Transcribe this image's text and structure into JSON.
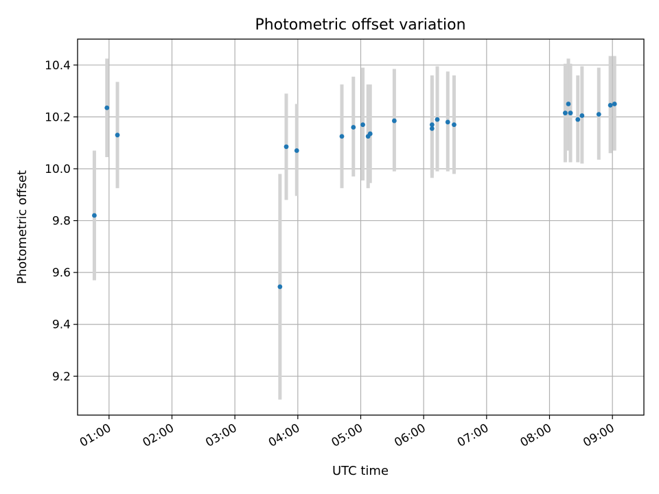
{
  "chart_data": {
    "type": "scatter",
    "title": "Photometric offset variation",
    "xlabel": "UTC time",
    "ylabel": "Photometric offset",
    "xlim": [
      "00:30",
      "09:30"
    ],
    "ylim": [
      9.05,
      10.5
    ],
    "x_ticks": [
      "01:00",
      "02:00",
      "03:00",
      "04:00",
      "05:00",
      "06:00",
      "07:00",
      "08:00",
      "09:00"
    ],
    "y_ticks": [
      "9.2",
      "9.4",
      "9.6",
      "9.8",
      "10.0",
      "10.2",
      "10.4"
    ],
    "grid": true,
    "series": [
      {
        "marker_color": "#1f77b4",
        "errorbar_color": "#d3d3d3",
        "points": [
          {
            "x": "00:46",
            "y": 9.82,
            "low": 9.57,
            "high": 10.07
          },
          {
            "x": "00:58",
            "y": 10.235,
            "low": 10.045,
            "high": 10.425
          },
          {
            "x": "01:08",
            "y": 10.13,
            "low": 9.925,
            "high": 10.335
          },
          {
            "x": "03:43",
            "y": 9.545,
            "low": 9.11,
            "high": 9.98
          },
          {
            "x": "03:49",
            "y": 10.085,
            "low": 9.88,
            "high": 10.29
          },
          {
            "x": "03:59",
            "y": 10.07,
            "low": 9.895,
            "high": 10.25
          },
          {
            "x": "04:42",
            "y": 10.125,
            "low": 9.925,
            "high": 10.325
          },
          {
            "x": "04:53",
            "y": 10.16,
            "low": 9.97,
            "high": 10.355
          },
          {
            "x": "05:02",
            "y": 10.17,
            "low": 9.955,
            "high": 10.39
          },
          {
            "x": "05:07",
            "y": 10.125,
            "low": 9.925,
            "high": 10.325
          },
          {
            "x": "05:09",
            "y": 10.135,
            "low": 9.945,
            "high": 10.325
          },
          {
            "x": "05:32",
            "y": 10.185,
            "low": 9.99,
            "high": 10.385
          },
          {
            "x": "06:08",
            "y": 10.17,
            "low": 9.975,
            "high": 10.36
          },
          {
            "x": "06:08",
            "y": 10.155,
            "low": 9.965,
            "high": 10.345
          },
          {
            "x": "06:13",
            "y": 10.19,
            "low": 9.99,
            "high": 10.395
          },
          {
            "x": "06:23",
            "y": 10.18,
            "low": 9.99,
            "high": 10.375
          },
          {
            "x": "06:29",
            "y": 10.17,
            "low": 9.98,
            "high": 10.36
          },
          {
            "x": "08:15",
            "y": 10.215,
            "low": 10.025,
            "high": 10.405
          },
          {
            "x": "08:18",
            "y": 10.25,
            "low": 10.07,
            "high": 10.425
          },
          {
            "x": "08:20",
            "y": 10.215,
            "low": 10.025,
            "high": 10.405
          },
          {
            "x": "08:27",
            "y": 10.19,
            "low": 10.025,
            "high": 10.36
          },
          {
            "x": "08:31",
            "y": 10.205,
            "low": 10.02,
            "high": 10.395
          },
          {
            "x": "08:47",
            "y": 10.21,
            "low": 10.035,
            "high": 10.39
          },
          {
            "x": "08:58",
            "y": 10.245,
            "low": 10.06,
            "high": 10.435
          },
          {
            "x": "09:02",
            "y": 10.25,
            "low": 10.07,
            "high": 10.435
          }
        ]
      }
    ]
  }
}
